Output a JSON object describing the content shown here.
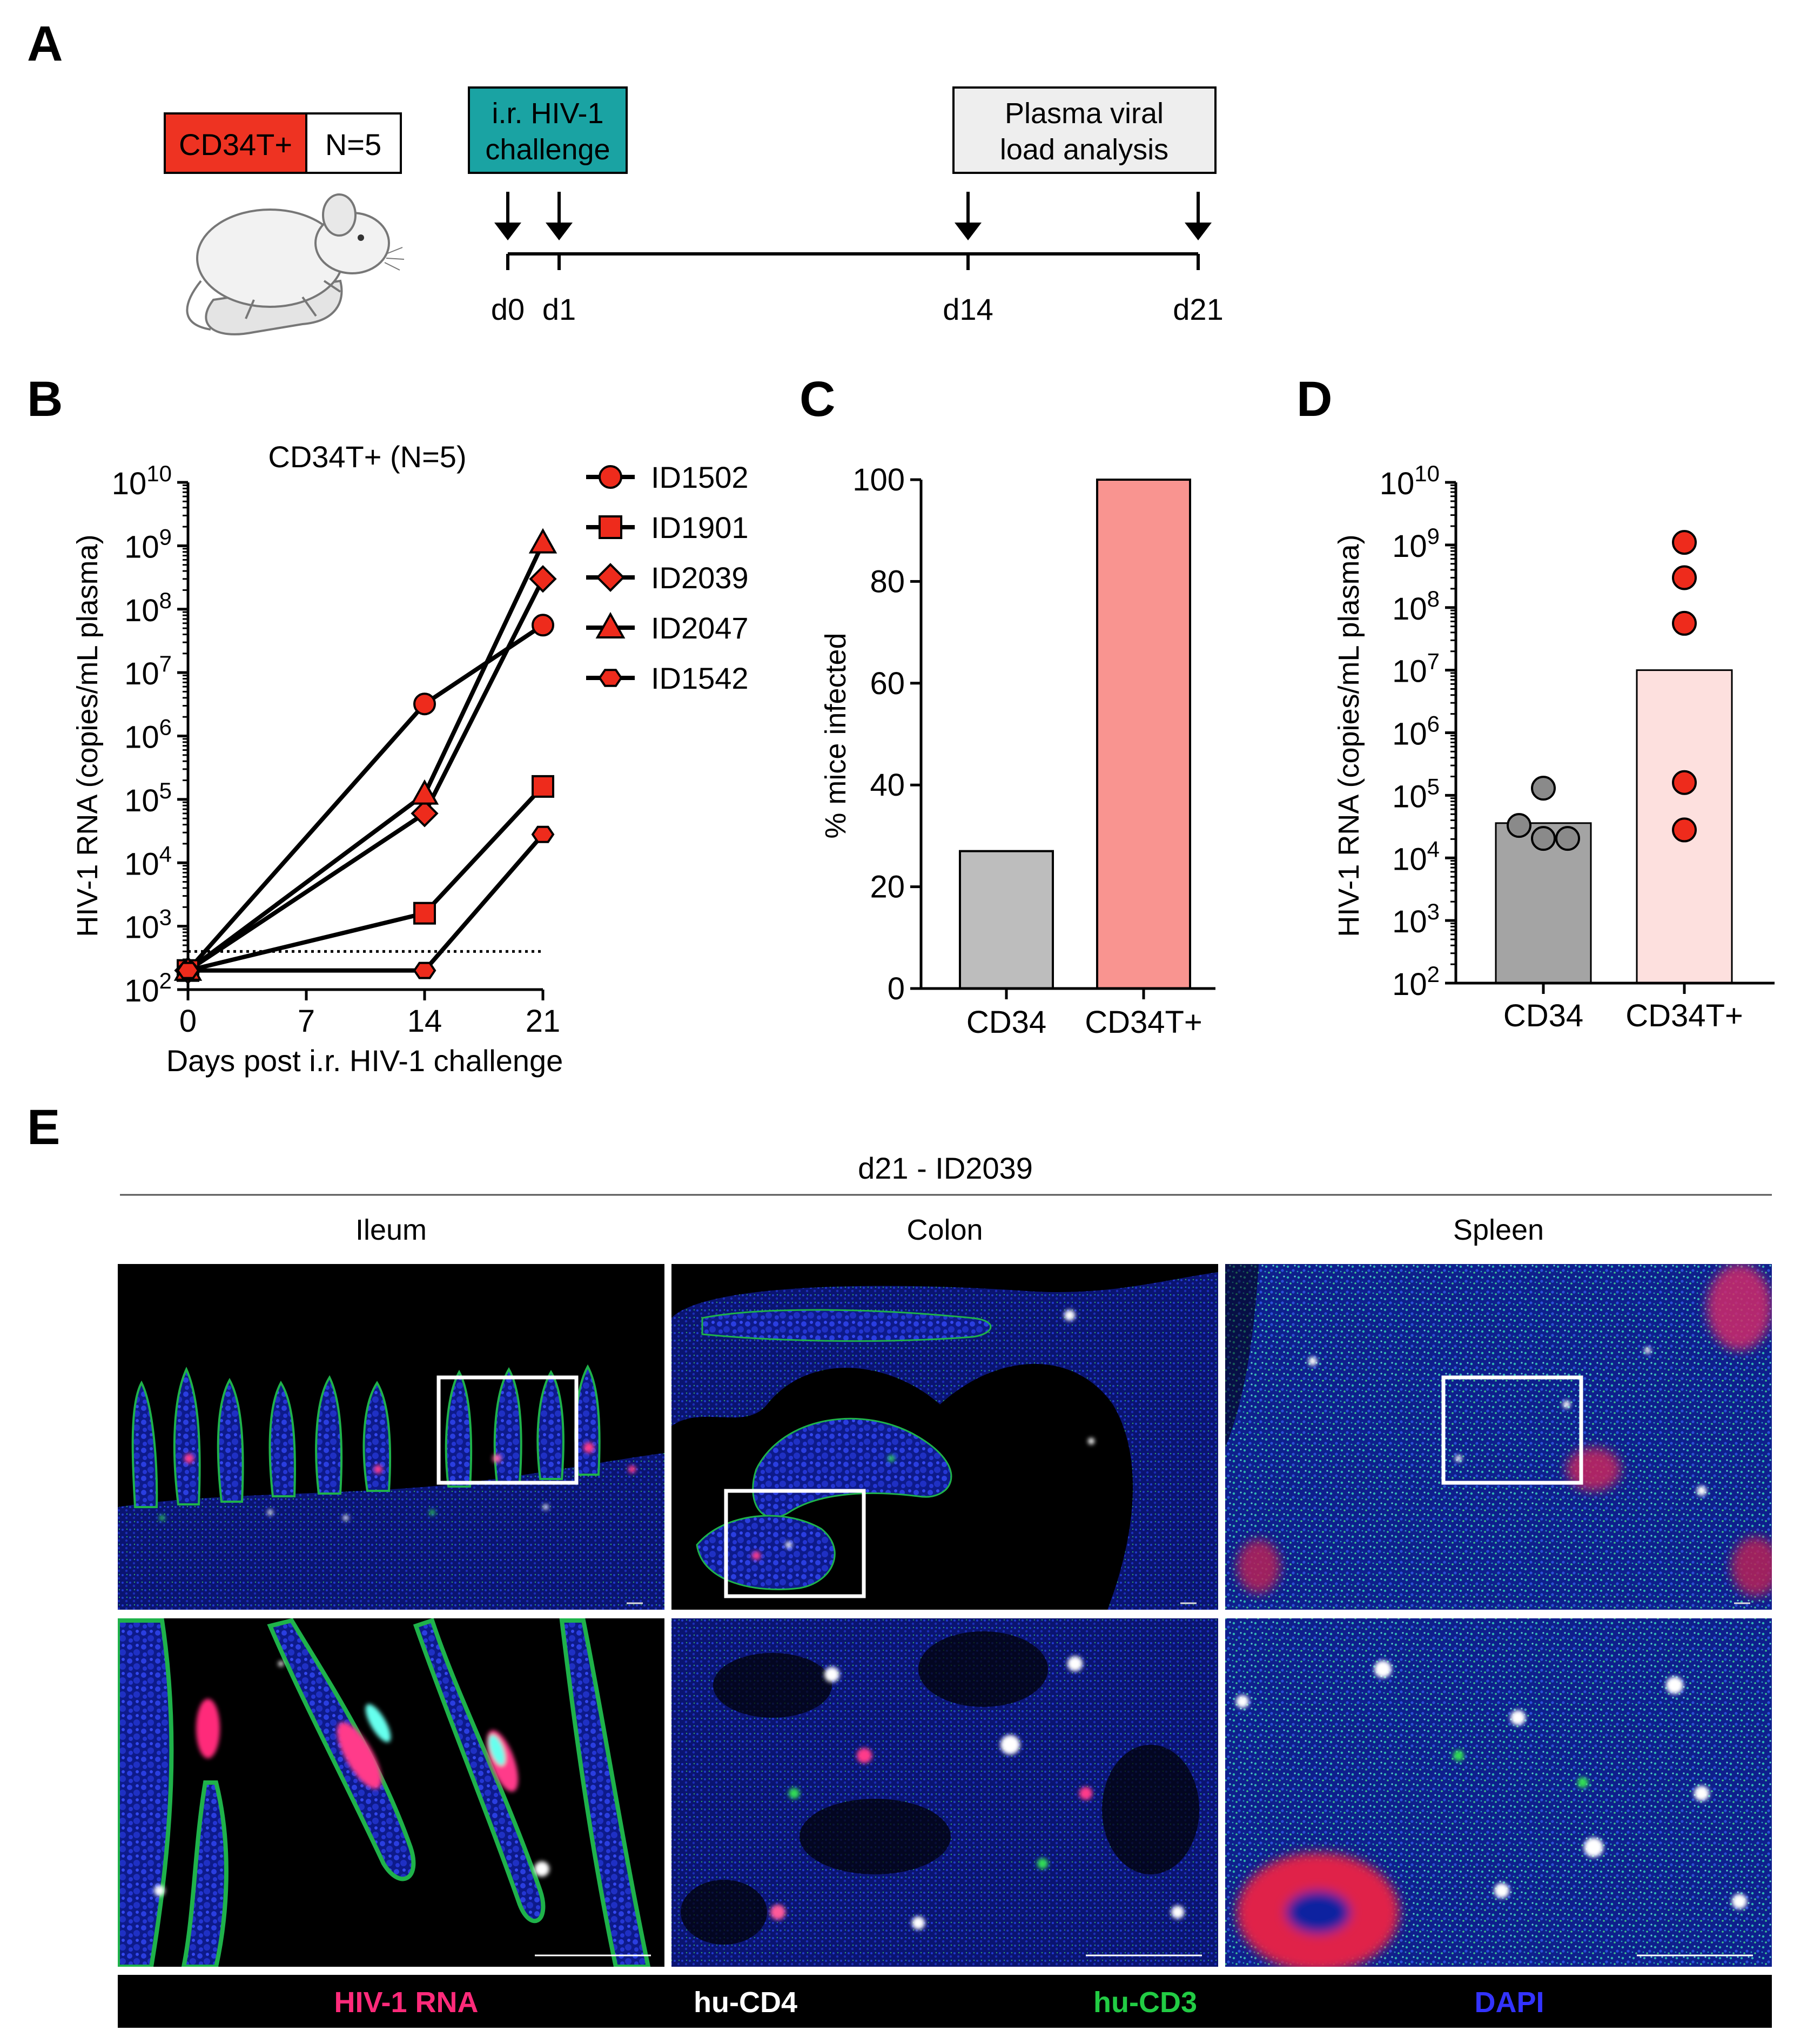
{
  "panels": {
    "A": "A",
    "B": "B",
    "C": "C",
    "D": "D",
    "E": "E"
  },
  "panel_a": {
    "group_label": "CD34T+",
    "n_label": "N=5",
    "challenge_box": [
      "i.r. HIV-1",
      "challenge"
    ],
    "analysis_box": [
      "Plasma viral",
      "load analysis"
    ],
    "timeline": [
      {
        "label": "d0",
        "day": 0
      },
      {
        "label": "d1",
        "day": 1
      },
      {
        "label": "d14",
        "day": 14
      },
      {
        "label": "d21",
        "day": 21
      }
    ],
    "colors": {
      "group": "#ee3322",
      "challenge": "#1aa3a3",
      "analysis": "#eeeeee"
    }
  },
  "panel_e": {
    "header": "d21 - ID2039",
    "tissues": [
      "Ileum",
      "Colon",
      "Spleen"
    ],
    "legend": [
      {
        "label": "HIV-1 RNA",
        "color": "#ff2a7a"
      },
      {
        "label": "hu-CD4",
        "color": "#ffffff"
      },
      {
        "label": "hu-CD3",
        "color": "#22cc44"
      },
      {
        "label": "DAPI",
        "color": "#3333ff"
      }
    ]
  },
  "chart_data": [
    {
      "panel": "B",
      "type": "line",
      "title": "CD34T+ (N=5)",
      "xlabel": "Days post i.r. HIV-1 challenge",
      "ylabel": "HIV-1 RNA (copies/mL plasma)",
      "yscale": "log10",
      "xlim": [
        0,
        21
      ],
      "ylim": [
        100,
        10000000000
      ],
      "xticks": [
        0,
        7,
        14,
        21
      ],
      "yticks": [
        {
          "base": "10",
          "exp": "2"
        },
        {
          "base": "10",
          "exp": "3"
        },
        {
          "base": "10",
          "exp": "4"
        },
        {
          "base": "10",
          "exp": "5"
        },
        {
          "base": "10",
          "exp": "6"
        },
        {
          "base": "10",
          "exp": "7"
        },
        {
          "base": "10",
          "exp": "8"
        },
        {
          "base": "10",
          "exp": "9"
        },
        {
          "base": "10",
          "exp": "10"
        }
      ],
      "detection_limit": 400,
      "legend_position": "right",
      "color": "#ee2b1c",
      "series": [
        {
          "name": "ID1502",
          "marker": "circle",
          "x": [
            0,
            14,
            21
          ],
          "y": [
            200,
            3200000,
            56000000
          ]
        },
        {
          "name": "ID1901",
          "marker": "square",
          "x": [
            0,
            14,
            21
          ],
          "y": [
            200,
            1600,
            160000
          ]
        },
        {
          "name": "ID2039",
          "marker": "diamond",
          "x": [
            0,
            14,
            21
          ],
          "y": [
            200,
            60000,
            300000000
          ]
        },
        {
          "name": "ID2047",
          "marker": "triangle",
          "x": [
            0,
            14,
            21
          ],
          "y": [
            200,
            120000,
            1100000000
          ]
        },
        {
          "name": "ID1542",
          "marker": "hexagon",
          "x": [
            0,
            14,
            21
          ],
          "y": [
            200,
            200,
            28000
          ]
        }
      ]
    },
    {
      "panel": "C",
      "type": "bar",
      "ylabel": "% mice infected",
      "categories": [
        "CD34",
        "CD34T+"
      ],
      "values": [
        27,
        100
      ],
      "ylim": [
        0,
        100
      ],
      "yticks": [
        0,
        20,
        40,
        60,
        80,
        100
      ],
      "colors": [
        "#bdbdbd",
        "#f99490"
      ]
    },
    {
      "panel": "D",
      "type": "bar",
      "ylabel": "HIV-1 RNA (copies/mL plasma)",
      "yscale": "log10",
      "ylim": [
        100,
        10000000000
      ],
      "yticks": [
        {
          "base": "10",
          "exp": "2"
        },
        {
          "base": "10",
          "exp": "3"
        },
        {
          "base": "10",
          "exp": "4"
        },
        {
          "base": "10",
          "exp": "5"
        },
        {
          "base": "10",
          "exp": "6"
        },
        {
          "base": "10",
          "exp": "7"
        },
        {
          "base": "10",
          "exp": "8"
        },
        {
          "base": "10",
          "exp": "9"
        },
        {
          "base": "10",
          "exp": "10"
        }
      ],
      "categories": [
        "CD34",
        "CD34T+"
      ],
      "values": [
        36000,
        10000000
      ],
      "bar_colors": [
        "#a4a4a4",
        "#fde0de"
      ],
      "point_colors": [
        "#8a8a8a",
        "#ee2b1c"
      ],
      "points": [
        [
          130000,
          33000,
          26000,
          26000
        ],
        [
          1100000000,
          300000000,
          56000000,
          160000,
          28000
        ]
      ]
    }
  ]
}
